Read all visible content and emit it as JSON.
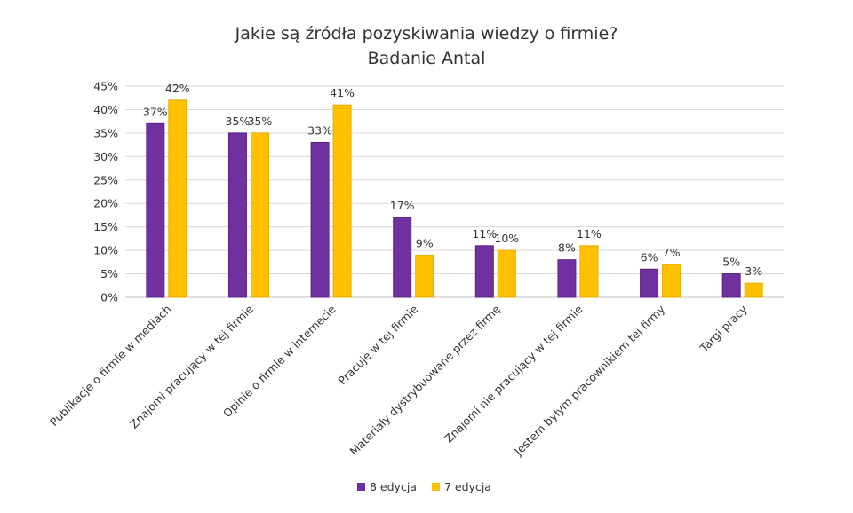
{
  "chart_data": {
    "type": "bar",
    "title": "Jakie są źródła pozyskiwania wiedzy o firmie?",
    "subtitle": "Badanie Antal",
    "categories": [
      "Publikacje o firmie w mediach",
      "Znajomi pracujący w tej firmie",
      "Opinie o firmie w internecie",
      "Pracuję w tej firmie",
      "Materiały dystrybuowane przez firmę",
      "Znajomi nie pracujący w tej firmie",
      "Jestem byłym pracownikiem tej firmy",
      "Targi pracy"
    ],
    "series": [
      {
        "name": "8 edycja",
        "color": "#7030A0",
        "values": [
          37,
          35,
          33,
          17,
          11,
          8,
          6,
          5
        ],
        "labels": [
          "37%",
          "35%",
          "33%",
          "17%",
          "11%",
          "8%",
          "6%",
          "5%"
        ]
      },
      {
        "name": "7 edycja",
        "color": "#FFC000",
        "values": [
          42,
          35,
          41,
          9,
          10,
          11,
          7,
          3
        ],
        "labels": [
          "42%",
          "35%",
          "41%",
          "9%",
          "10%",
          "11%",
          "7%",
          "3%"
        ]
      }
    ],
    "ylim": [
      0,
      45
    ],
    "yticks": [
      "0%",
      "5%",
      "10%",
      "15%",
      "20%",
      "25%",
      "30%",
      "35%",
      "40%",
      "45%"
    ],
    "ytick_values": [
      0,
      5,
      10,
      15,
      20,
      25,
      30,
      35,
      40,
      45
    ],
    "grid": true,
    "legend": "bottom"
  }
}
